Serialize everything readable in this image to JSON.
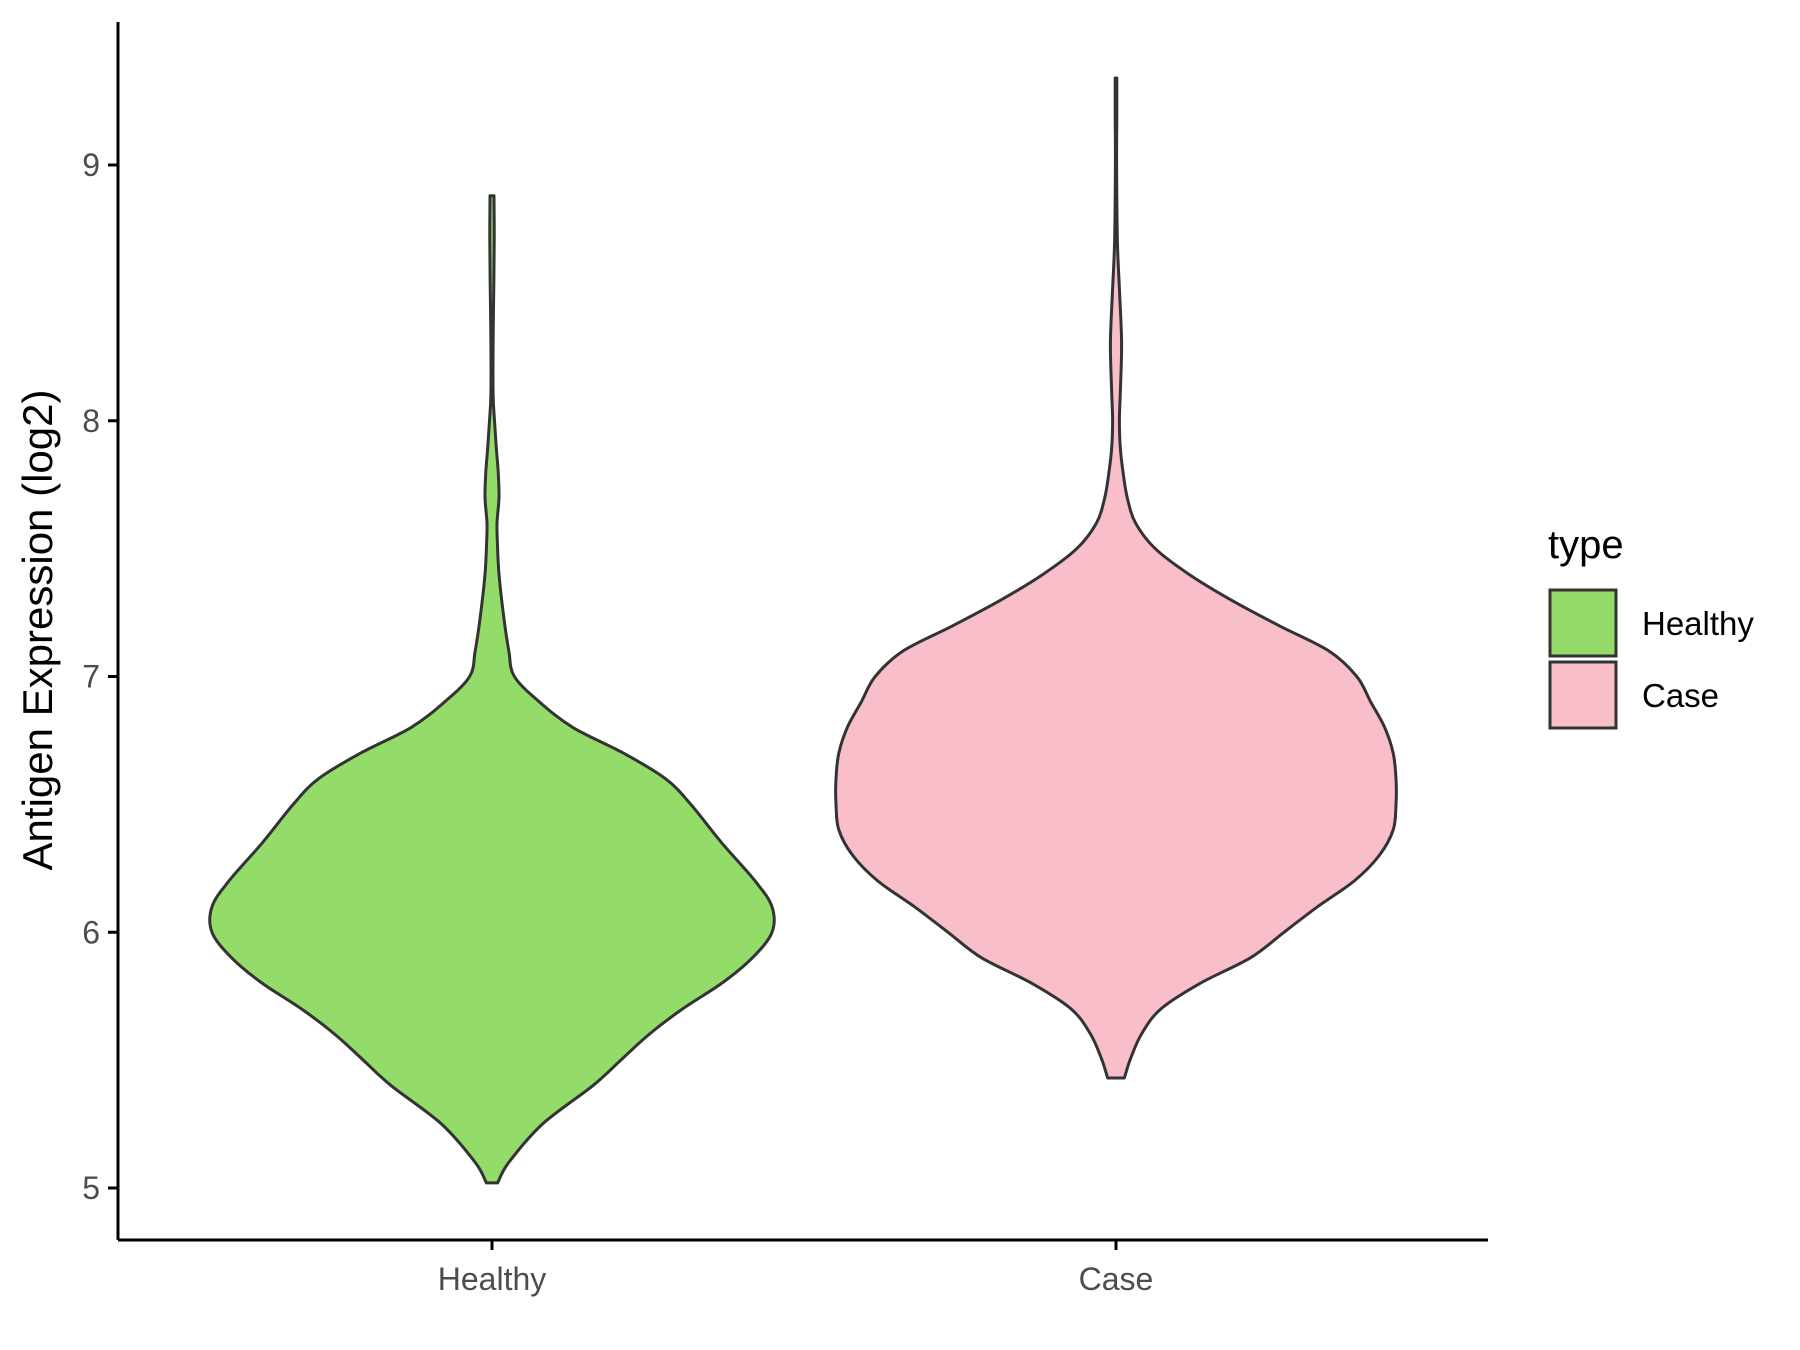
{
  "chart_data": {
    "type": "violin",
    "categories": [
      "Healthy",
      "Case"
    ],
    "ylabel": "Antigen Expression (log2)",
    "xlabel": "",
    "ylim": [
      4.8,
      9.55
    ],
    "yticks": [
      5,
      6,
      7,
      8,
      9
    ],
    "grid": false,
    "legend": {
      "title": "type",
      "position": "right",
      "entries": [
        "Healthy",
        "Case"
      ]
    },
    "colors": {
      "Healthy": "#93dc6a",
      "Case": "#f8bfca",
      "outline": "#333333",
      "axis": "#000000"
    },
    "series": [
      {
        "name": "Healthy",
        "min": 5.02,
        "max": 8.88,
        "density": [
          [
            5.02,
            0.02
          ],
          [
            5.1,
            0.06
          ],
          [
            5.25,
            0.18
          ],
          [
            5.4,
            0.36
          ],
          [
            5.5,
            0.46
          ],
          [
            5.6,
            0.56
          ],
          [
            5.7,
            0.68
          ],
          [
            5.8,
            0.82
          ],
          [
            5.9,
            0.93
          ],
          [
            6.0,
            1.0
          ],
          [
            6.1,
            1.0
          ],
          [
            6.2,
            0.94
          ],
          [
            6.35,
            0.82
          ],
          [
            6.5,
            0.71
          ],
          [
            6.6,
            0.62
          ],
          [
            6.7,
            0.47
          ],
          [
            6.8,
            0.29
          ],
          [
            6.9,
            0.17
          ],
          [
            7.0,
            0.08
          ],
          [
            7.1,
            0.06
          ],
          [
            7.25,
            0.04
          ],
          [
            7.4,
            0.025
          ],
          [
            7.5,
            0.02
          ],
          [
            7.6,
            0.018
          ],
          [
            7.7,
            0.025
          ],
          [
            7.8,
            0.022
          ],
          [
            7.9,
            0.015
          ],
          [
            8.0,
            0.009
          ],
          [
            8.1,
            0.004
          ],
          [
            8.3,
            0.004
          ],
          [
            8.5,
            0.006
          ],
          [
            8.7,
            0.008
          ],
          [
            8.88,
            0.007
          ]
        ]
      },
      {
        "name": "Case",
        "min": 5.43,
        "max": 9.34,
        "density": [
          [
            5.43,
            0.03
          ],
          [
            5.5,
            0.05
          ],
          [
            5.6,
            0.09
          ],
          [
            5.7,
            0.16
          ],
          [
            5.8,
            0.3
          ],
          [
            5.9,
            0.48
          ],
          [
            6.0,
            0.6
          ],
          [
            6.1,
            0.72
          ],
          [
            6.2,
            0.85
          ],
          [
            6.3,
            0.94
          ],
          [
            6.4,
            0.99
          ],
          [
            6.5,
            1.0
          ],
          [
            6.6,
            1.0
          ],
          [
            6.7,
            0.99
          ],
          [
            6.8,
            0.96
          ],
          [
            6.9,
            0.91
          ],
          [
            7.0,
            0.86
          ],
          [
            7.1,
            0.76
          ],
          [
            7.2,
            0.58
          ],
          [
            7.3,
            0.41
          ],
          [
            7.4,
            0.26
          ],
          [
            7.5,
            0.14
          ],
          [
            7.6,
            0.07
          ],
          [
            7.7,
            0.04
          ],
          [
            7.8,
            0.025
          ],
          [
            7.9,
            0.015
          ],
          [
            8.0,
            0.012
          ],
          [
            8.1,
            0.015
          ],
          [
            8.3,
            0.02
          ],
          [
            8.5,
            0.013
          ],
          [
            8.7,
            0.005
          ],
          [
            9.0,
            0.002
          ],
          [
            9.2,
            0.003
          ],
          [
            9.34,
            0.003
          ]
        ]
      }
    ]
  }
}
